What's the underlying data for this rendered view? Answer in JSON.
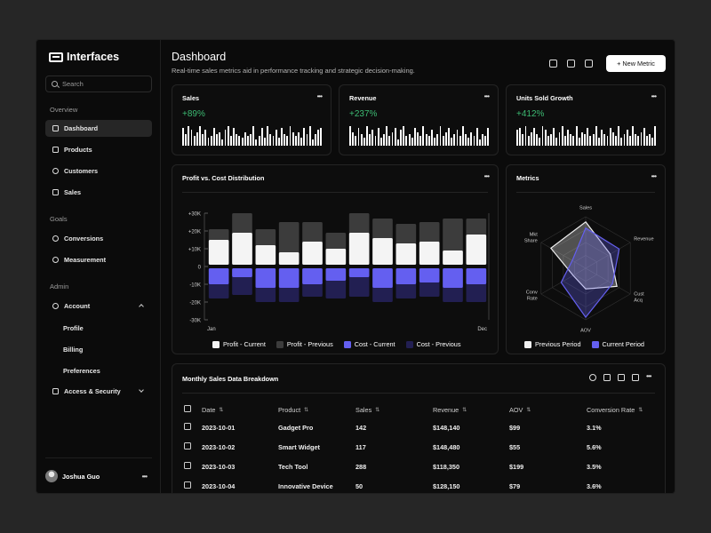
{
  "app": {
    "name": "Interfaces"
  },
  "search": {
    "placeholder": "Search"
  },
  "sidebar": {
    "sections": {
      "overview": "Overview",
      "goals": "Goals",
      "admin": "Admin"
    },
    "items": [
      {
        "label": "Dashboard",
        "icon": "dashboard-icon"
      },
      {
        "label": "Products",
        "icon": "box-icon"
      },
      {
        "label": "Customers",
        "icon": "users-icon"
      },
      {
        "label": "Sales",
        "icon": "sales-icon"
      },
      {
        "label": "Conversions",
        "icon": "conversion-icon"
      },
      {
        "label": "Measurement",
        "icon": "gauge-icon"
      },
      {
        "label": "Account",
        "icon": "user-icon"
      },
      {
        "label": "Access & Security",
        "icon": "shield-icon"
      }
    ],
    "account_sub": [
      "Profile",
      "Billing",
      "Preferences"
    ],
    "user": {
      "name": "Joshua Guo"
    }
  },
  "header": {
    "title": "Dashboard",
    "subtitle": "Real-time sales metrics aid in performance tracking and strategic decision-making.",
    "new_metric": "+ New Metric"
  },
  "kpis": [
    {
      "title": "Sales",
      "value": "+89%",
      "spark": [
        0.9,
        0.6,
        1,
        0.8,
        0.5,
        0.7,
        1,
        0.6,
        0.8,
        0.4,
        0.5,
        0.9,
        0.6,
        0.7,
        0.3,
        0.8,
        1,
        0.5,
        0.9,
        0.6,
        0.5,
        0.4,
        0.7,
        0.5,
        0.6,
        1,
        0.3,
        0.5,
        0.9,
        0.4,
        1,
        0.6,
        0.5,
        0.8,
        0.4,
        0.9,
        0.6,
        0.5,
        1,
        0.7,
        0.5,
        0.7,
        0.4,
        0.9,
        0.6,
        1,
        0.3,
        0.6,
        0.8,
        0.9
      ]
    },
    {
      "title": "Revenue",
      "value": "+237%",
      "spark": [
        1,
        0.7,
        0.5,
        0.9,
        0.6,
        0.4,
        1,
        0.6,
        0.8,
        0.5,
        0.9,
        0.4,
        0.6,
        1,
        0.5,
        0.7,
        0.9,
        0.3,
        0.8,
        1,
        0.5,
        0.6,
        0.4,
        0.9,
        0.7,
        0.5,
        1,
        0.6,
        0.5,
        0.8,
        0.4,
        0.6,
        1,
        0.5,
        0.7,
        0.9,
        0.4,
        0.6,
        0.8,
        0.5,
        1,
        0.6,
        0.4,
        0.7,
        0.5,
        0.9,
        0.3,
        0.6,
        0.5,
        0.9
      ]
    },
    {
      "title": "Units Sold Growth",
      "value": "+412%",
      "spark": [
        0.8,
        0.9,
        0.6,
        1,
        0.5,
        0.7,
        0.9,
        0.6,
        0.4,
        1,
        0.8,
        0.5,
        0.6,
        0.9,
        0.4,
        0.7,
        1,
        0.5,
        0.8,
        0.6,
        0.5,
        1,
        0.4,
        0.7,
        0.6,
        0.9,
        0.5,
        0.6,
        1,
        0.4,
        0.8,
        0.6,
        0.5,
        0.9,
        0.7,
        0.5,
        1,
        0.4,
        0.6,
        0.8,
        0.5,
        1,
        0.6,
        0.5,
        0.7,
        0.9,
        0.5,
        0.6,
        0.4,
        1
      ]
    }
  ],
  "profit_chart": {
    "title": "Profit vs. Cost Distribution",
    "chart_data": {
      "type": "bar",
      "x_tick_labels": [
        "Jan",
        "Dec"
      ],
      "y_ticks": [
        "+30K",
        "+20K",
        "+10K",
        "0",
        "-10K",
        "-20K",
        "-30K"
      ],
      "ylim": [
        -30,
        30
      ],
      "series": [
        {
          "name": "Profit - Current",
          "color": "#f4f4f4",
          "values": [
            15,
            19,
            12,
            8,
            14,
            10,
            19,
            16,
            13,
            14,
            9,
            18
          ]
        },
        {
          "name": "Profit - Previous",
          "color": "#3c3c3c",
          "values": [
            21,
            30,
            21,
            25,
            25,
            19,
            30,
            27,
            24,
            25,
            27,
            27
          ]
        },
        {
          "name": "Cost - Current",
          "color": "#645ff0",
          "values": [
            -10,
            -6,
            -12,
            -12,
            -10,
            -8,
            -6,
            -12,
            -10,
            -9,
            -12,
            -10
          ]
        },
        {
          "name": "Cost - Previous",
          "color": "#221f52",
          "values": [
            -18,
            -16,
            -20,
            -20,
            -17,
            -18,
            -17,
            -20,
            -18,
            -17,
            -20,
            -20
          ]
        }
      ],
      "legend": "bottom"
    }
  },
  "metrics_chart": {
    "title": "Metrics",
    "chart_data": {
      "type": "radar",
      "axes": [
        "Sales",
        "Revenue",
        "Cust Acq",
        "AOV",
        "Conv Rate",
        "Mkt Share"
      ],
      "series": [
        {
          "name": "Previous Period",
          "color": "#f0f0f0",
          "values": [
            0.9,
            0.55,
            0.7,
            0.4,
            0.28,
            0.78
          ]
        },
        {
          "name": "Current Period",
          "color": "#645ff0",
          "values": [
            0.78,
            0.75,
            0.6,
            0.95,
            0.55,
            0.3
          ]
        }
      ],
      "legend": "bottom"
    }
  },
  "table": {
    "title": "Monthly Sales Data Breakdown",
    "columns": [
      "Date",
      "Product",
      "Sales",
      "Revenue",
      "AOV",
      "Conversion Rate"
    ],
    "rows": [
      [
        "2023-10-01",
        "Gadget Pro",
        "142",
        "$148,140",
        "$99",
        "3.1%"
      ],
      [
        "2023-10-02",
        "Smart Widget",
        "117",
        "$148,480",
        "$55",
        "5.6%"
      ],
      [
        "2023-10-03",
        "Tech Tool",
        "288",
        "$118,350",
        "$199",
        "3.5%"
      ],
      [
        "2023-10-04",
        "Innovative Device",
        "50",
        "$128,150",
        "$79",
        "3.6%"
      ]
    ]
  }
}
